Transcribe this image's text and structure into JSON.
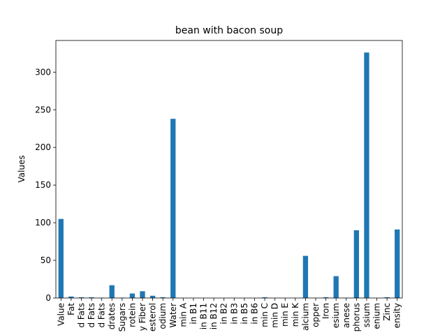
{
  "chart_data": {
    "type": "bar",
    "title": "bean with bacon soup",
    "ylabel": "Values",
    "categories": [
      "Value",
      "Fat",
      "d Fats",
      "d Fats",
      "d Fats",
      "drates",
      "Sugars",
      "rotein",
      "y Fiber",
      "esterol",
      "odium",
      "Water",
      "min A",
      "in B1",
      "in B11",
      "in B12",
      "in B2",
      "in B3",
      "in B5",
      "in B6",
      "min C",
      "min D",
      "min E",
      "min K",
      "alcium",
      "opper",
      "Iron",
      "esium",
      "anese",
      "phorus",
      "ssium",
      "enium",
      "Zinc",
      "ensity"
    ],
    "values": [
      105,
      2,
      1,
      1,
      0.5,
      17,
      0.5,
      6,
      9,
      3,
      1,
      238,
      0,
      0,
      0,
      0,
      0,
      0,
      0,
      0,
      1,
      0,
      0,
      0,
      56,
      0.2,
      1,
      29,
      0.3,
      90,
      326,
      0,
      1,
      91
    ],
    "color": "#1f77b4",
    "ylim": [
      0,
      342
    ],
    "yticks": [
      0,
      50,
      100,
      150,
      200,
      250,
      300
    ]
  }
}
